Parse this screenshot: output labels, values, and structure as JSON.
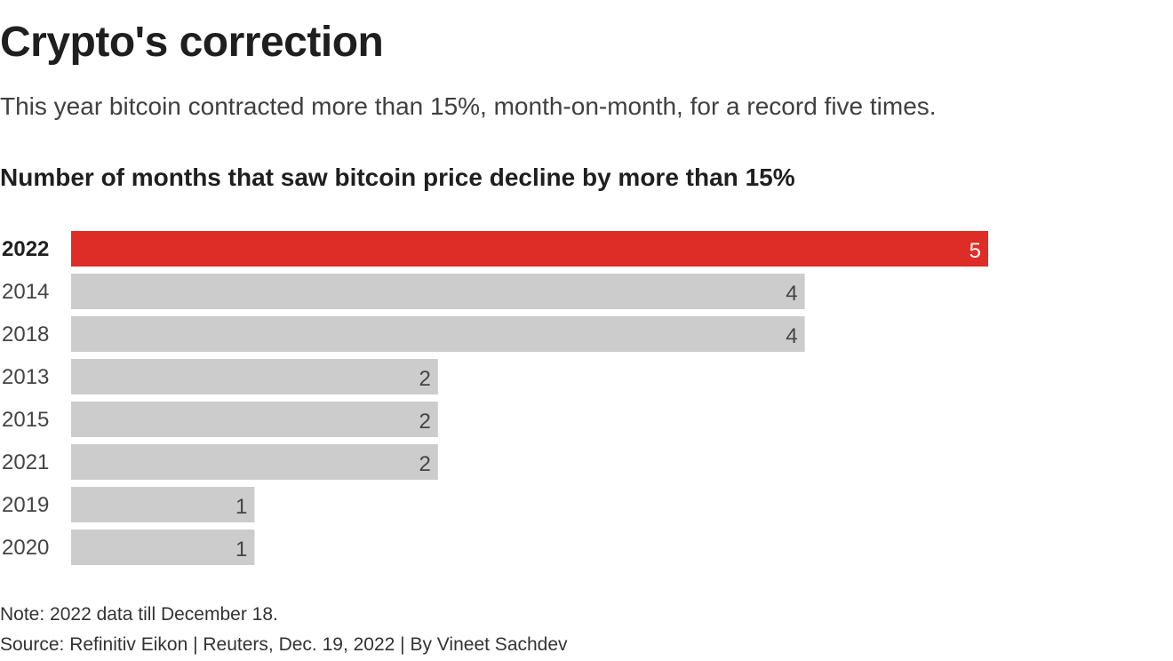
{
  "header": {
    "title": "Crypto's correction",
    "subtitle": "This year bitcoin contracted more than 15%, month-on-month, for a record five times."
  },
  "chart_data": {
    "type": "bar",
    "orientation": "horizontal",
    "title": "Number of months that saw bitcoin price decline by more than 15%",
    "categories": [
      "2022",
      "2014",
      "2018",
      "2013",
      "2015",
      "2021",
      "2019",
      "2020"
    ],
    "values": [
      5,
      4,
      4,
      2,
      2,
      2,
      1,
      1
    ],
    "highlight_category": "2022",
    "xlim": [
      0,
      5
    ],
    "xlabel": "",
    "ylabel": "",
    "grid": false,
    "colors": {
      "highlight": "#de2d26",
      "default": "#cccccc"
    }
  },
  "footer": {
    "note": "Note: 2022 data till December 18.",
    "source": "Source: Refinitiv Eikon | Reuters, Dec. 19, 2022 | By Vineet Sachdev"
  }
}
